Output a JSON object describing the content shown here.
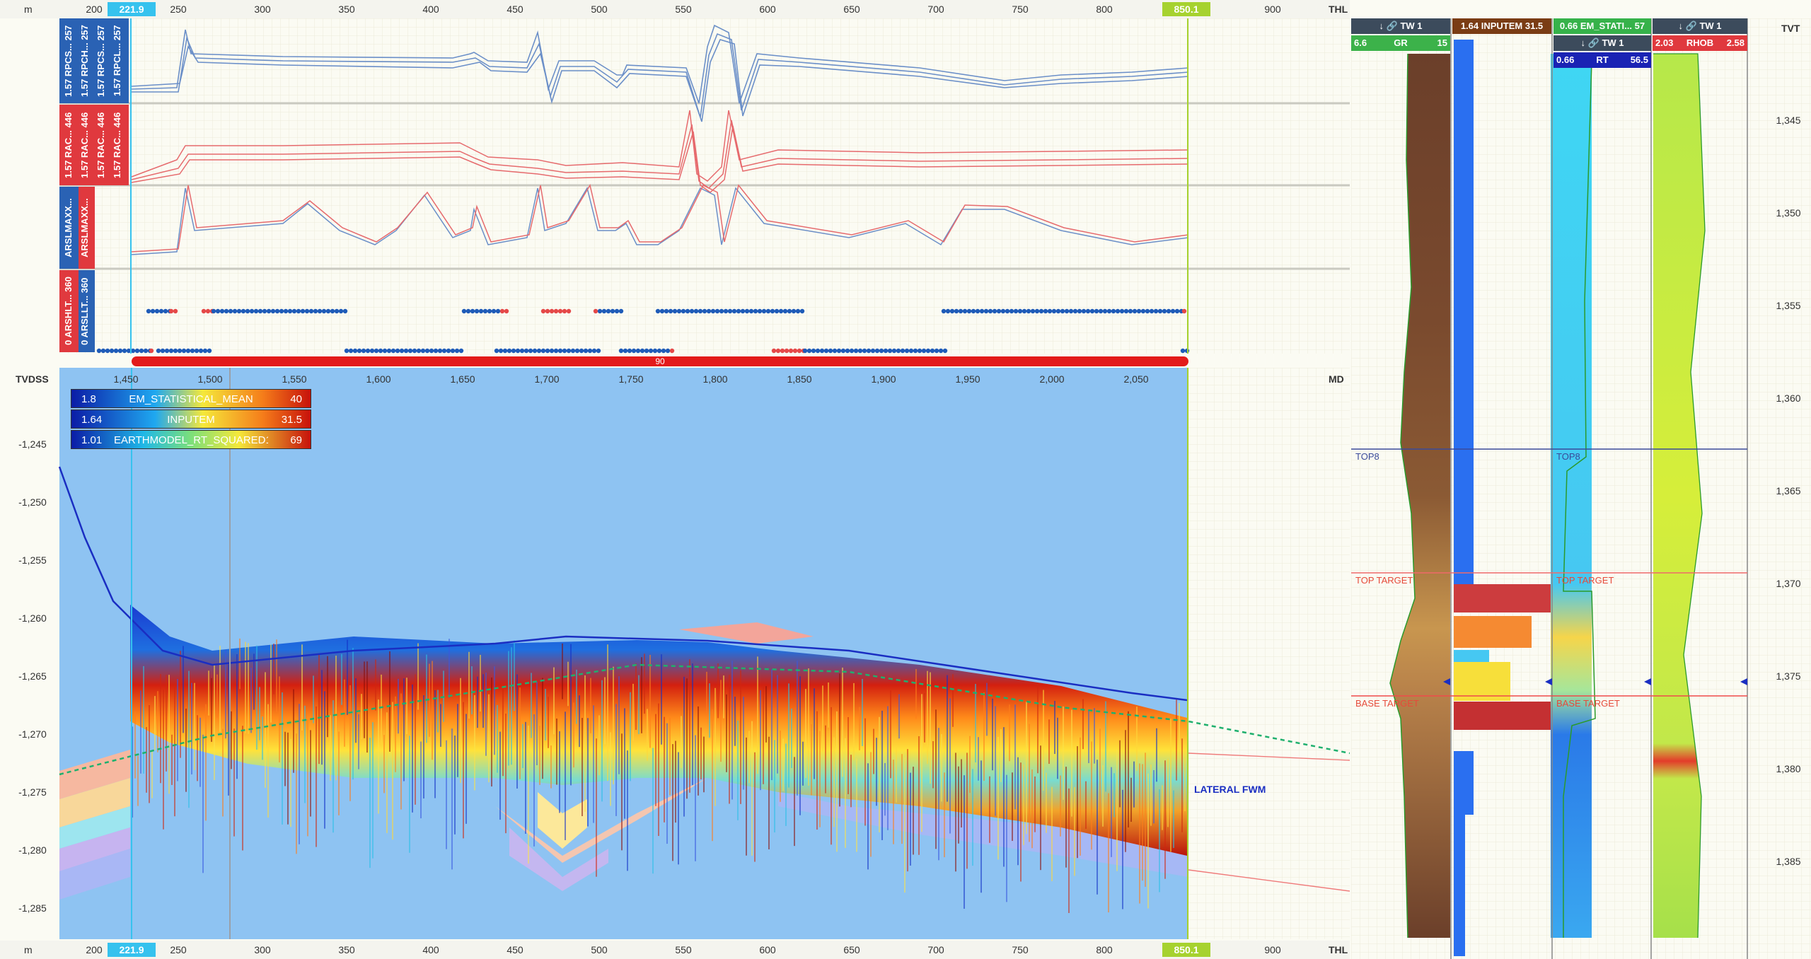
{
  "top_axis": {
    "unit": "m",
    "ticks": [
      "200",
      "250",
      "300",
      "350",
      "400",
      "450",
      "500",
      "550",
      "600",
      "650",
      "700",
      "750",
      "800",
      "850",
      "900"
    ],
    "left_marker": "221.9",
    "right_marker": "850.1",
    "end_label": "THL"
  },
  "bottom_axis": {
    "unit": "m",
    "end_label": "THL",
    "unit_right": "m"
  },
  "lanes": {
    "lane1": [
      "1.57 RPCS... 257",
      "1.57 RPCH... 257",
      "1.57 RPCS... 257",
      "1.57 RPCL... 257"
    ],
    "lane2": [
      "1.57 RAC... 446",
      "1.57 RAC... 446",
      "1.57 RAC... 446",
      "1.57 RAC... 446"
    ],
    "lane3": [
      "ARSLMAXX...",
      "ARSLMAXX..."
    ],
    "lane4": [
      "0 ARSHLT... 360",
      "0 ARSLLT... 360"
    ],
    "scroll_value": "90"
  },
  "section": {
    "y_label": "TVDSS",
    "md_label": "MD",
    "md_ticks": [
      "1,450",
      "1,500",
      "1,550",
      "1,600",
      "1,650",
      "1,700",
      "1,750",
      "1,800",
      "1,850",
      "1,900",
      "1,950",
      "2,000",
      "2,050"
    ],
    "tvdss_ticks": [
      "-1,245",
      "-1,250",
      "-1,255",
      "-1,260",
      "-1,265",
      "-1,270",
      "-1,275",
      "-1,280",
      "-1,285"
    ],
    "well_label": "LATERAL FWM",
    "legend": [
      {
        "low": "1.8",
        "name": "EM_STATISTICAL_MEAN",
        "high": "40"
      },
      {
        "low": "1.64",
        "name": "INPUTEM",
        "high": "31.5"
      },
      {
        "low": "1.01",
        "name": "EARTHMODEL_RT_SQUARED1",
        "high": "69"
      }
    ]
  },
  "tracks": {
    "gr": {
      "title": "TW 1",
      "min": "6.6",
      "name": "GR",
      "max": "15"
    },
    "inputem": {
      "title": "1.64 INPUTEM 31.5"
    },
    "em": {
      "title": "0.66 EM_STATI... 57",
      "sub": "TW 1",
      "min": "0.66",
      "name": "RT",
      "max": "56.5"
    },
    "rhob": {
      "title": "TW 1",
      "min": "2.03",
      "name": "RHOB",
      "max": "2.58"
    },
    "tvt_label": "TVT",
    "tvt_ticks": [
      "1,345",
      "1,350",
      "1,355",
      "1,360",
      "1,365",
      "1,370",
      "1,375",
      "1,380",
      "1,385"
    ],
    "markers": [
      "TOP8",
      "TOP TARGET",
      "BASE TARGET"
    ]
  },
  "colors": {
    "sky": "#8ec3f2",
    "blue_lane": "#2a62b4",
    "red_lane": "#e0393e",
    "lime": "#a6d22f",
    "cyan": "#2bb6ea"
  }
}
